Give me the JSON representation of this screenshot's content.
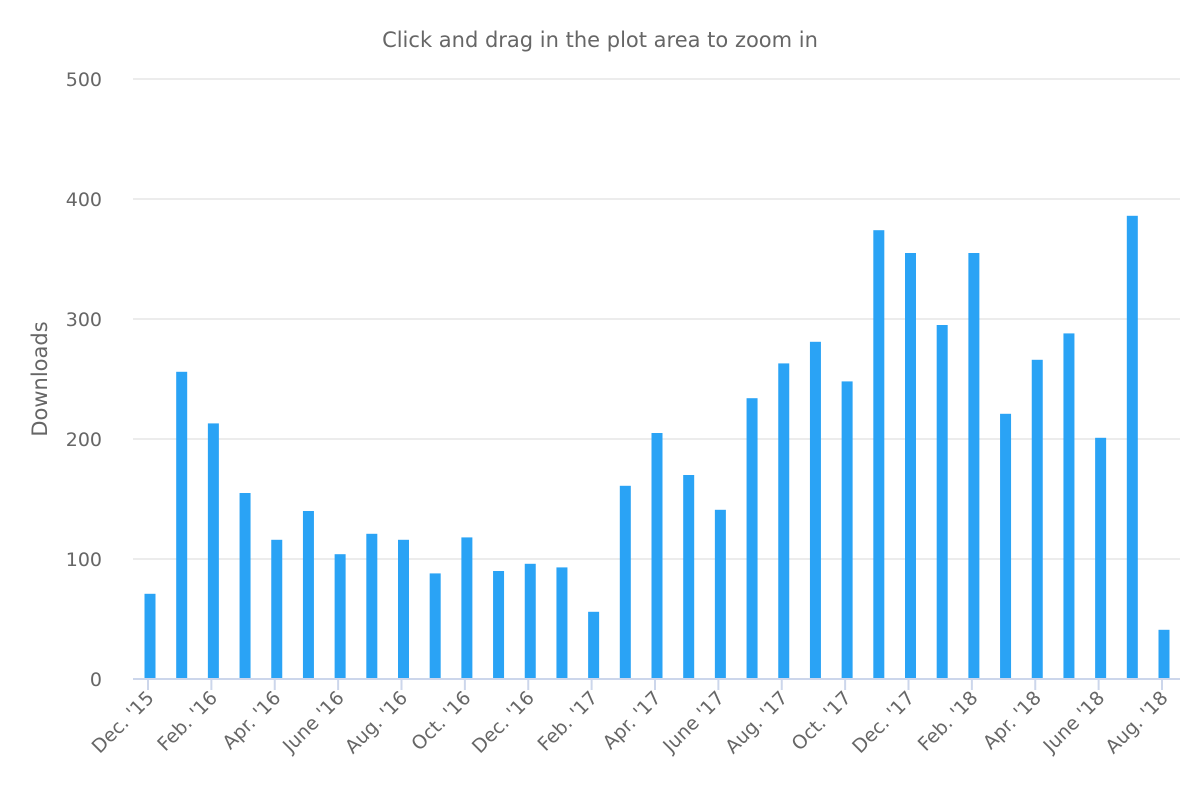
{
  "chart_data": {
    "type": "bar",
    "subtitle": "Click and drag in the plot area to zoom in",
    "ylabel": "Downloads",
    "ylim": [
      0,
      500
    ],
    "yticks": [
      0,
      100,
      200,
      300,
      400,
      500
    ],
    "grid": true,
    "colors": {
      "bar": "#2aa3f5",
      "grid": "#e6e6e6",
      "axis": "#ccd6eb",
      "text": "#666666"
    },
    "categories": [
      "Dec. '15",
      "Jan. '16",
      "Feb. '16",
      "Mar. '16",
      "Apr. '16",
      "May '16",
      "June '16",
      "July '16",
      "Aug. '16",
      "Sept. '16",
      "Oct. '16",
      "Nov. '16",
      "Dec. '16",
      "Jan. '17",
      "Feb. '17",
      "Mar. '17",
      "Apr. '17",
      "May '17",
      "June '17",
      "July '17",
      "Aug. '17",
      "Sept. '17",
      "Oct. '17",
      "Nov. '17",
      "Dec. '17",
      "Jan. '18",
      "Feb. '18",
      "Mar. '18",
      "Apr. '18",
      "May '18",
      "June '18",
      "July '18",
      "Aug. '18"
    ],
    "values": [
      71,
      256,
      213,
      155,
      116,
      140,
      104,
      121,
      116,
      88,
      118,
      90,
      96,
      93,
      56,
      161,
      205,
      170,
      141,
      234,
      263,
      281,
      248,
      374,
      355,
      295,
      355,
      221,
      266,
      288,
      201,
      386,
      41
    ],
    "xtick_labels": [
      "Dec. '15",
      "Feb. '16",
      "Apr. '16",
      "June '16",
      "Aug. '16",
      "Oct. '16",
      "Dec. '16",
      "Feb. '17",
      "Apr. '17",
      "June '17",
      "Aug. '17",
      "Oct. '17",
      "Dec. '17",
      "Feb. '18",
      "Apr. '18",
      "June '18",
      "Aug. '18"
    ]
  }
}
